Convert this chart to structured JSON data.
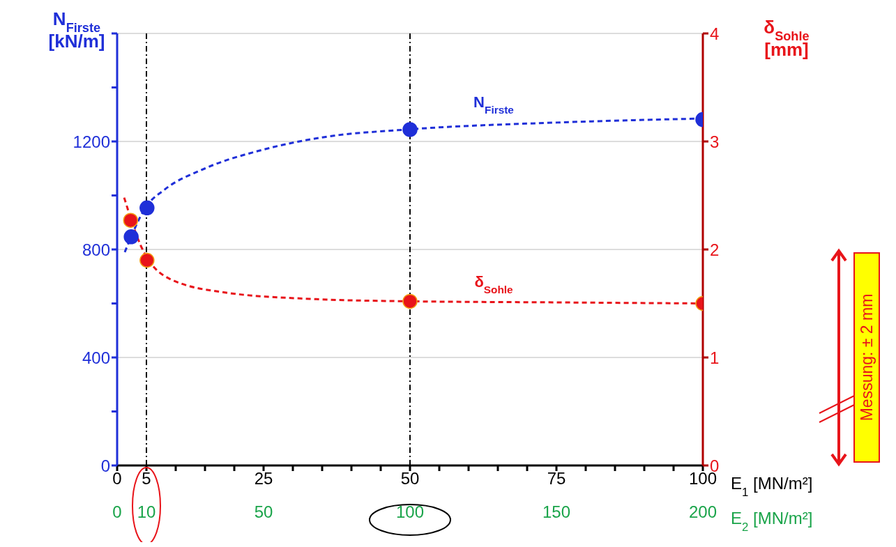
{
  "chart_data": {
    "type": "line",
    "xlabel": "E$_{1}$ [MN/m²]",
    "x2label": "E$_{2}$ [MN/m²]",
    "ylabel": "N$_{Firste}$ [kN/m]",
    "y2label": "δ$_{Sohle}$ [mm]",
    "xlim": [
      0,
      100
    ],
    "xticks": [
      0,
      5,
      {
        "value": 10,
        "label": null
      },
      {
        "value": 15,
        "label": null
      },
      {
        "value": 20,
        "label": null
      },
      25,
      {
        "value": 30,
        "label": null
      },
      {
        "value": 35,
        "label": null
      },
      {
        "value": 40,
        "label": null
      },
      {
        "value": 45,
        "label": null
      },
      50,
      {
        "value": 55,
        "label": null
      },
      {
        "value": 60,
        "label": null
      },
      {
        "value": 65,
        "label": null
      },
      {
        "value": 70,
        "label": null
      },
      75,
      {
        "value": 80,
        "label": null
      },
      {
        "value": 85,
        "label": null
      },
      {
        "value": 90,
        "label": null
      },
      {
        "value": 95,
        "label": null
      },
      100
    ],
    "x2lim": [
      0,
      200
    ],
    "x2ticks": [
      0,
      10,
      50,
      100,
      150,
      200
    ],
    "ylim": [
      0,
      1600
    ],
    "yticks": [
      0,
      {
        "value": 200,
        "label": null
      },
      400,
      {
        "value": 600,
        "label": null
      },
      800,
      {
        "value": 1000,
        "label": null
      },
      1200,
      {
        "value": 1400,
        "label": null
      },
      {
        "value": 1600,
        "label": null
      }
    ],
    "y2lim": [
      0,
      4
    ],
    "y2ticks": [
      0,
      1,
      2,
      3,
      4
    ],
    "grid": "y",
    "line_style": "dashed",
    "series": [
      {
        "name": "N$_{Firste}$",
        "marker": "none",
        "color": "#1f2fd8",
        "x": [
          1.3,
          5,
          8,
          15,
          25,
          35,
          50,
          75,
          100
        ],
        "values": [
          790,
          960,
          1020,
          1100,
          1170,
          1215,
          1245,
          1270,
          1285
        ]
      },
      {
        "type": "scatter",
        "marker": "circle",
        "color": "#1f2fd8",
        "x": [
          2.4,
          5.1,
          50,
          100
        ],
        "values": [
          847,
          954,
          1244,
          1281
        ]
      },
      {
        "name": "δ$_{Sohle}$",
        "axis": "y2",
        "marker": "none",
        "color": "#e8141a",
        "x": [
          1.2,
          4,
          8.9,
          18.6,
          34,
          50,
          75,
          100
        ],
        "values": [
          2.48,
          2.04,
          1.73,
          1.6,
          1.54,
          1.52,
          1.51,
          1.5
        ]
      },
      {
        "type": "scatter",
        "axis": "y2",
        "marker": "circle",
        "color": "#e8141a",
        "x": [
          2.3,
          5.1,
          50,
          100
        ],
        "values": [
          2.27,
          1.9,
          1.52,
          1.5
        ]
      }
    ],
    "ref_lines": [
      {
        "axis": "x",
        "value": 5,
        "color": "#000000",
        "line_style": "dashdot"
      },
      {
        "axis": "x",
        "value": 50,
        "color": "#000000",
        "line_style": "dashdot"
      }
    ],
    "annotations": [
      "Messung: ± 2 mm"
    ]
  }
}
